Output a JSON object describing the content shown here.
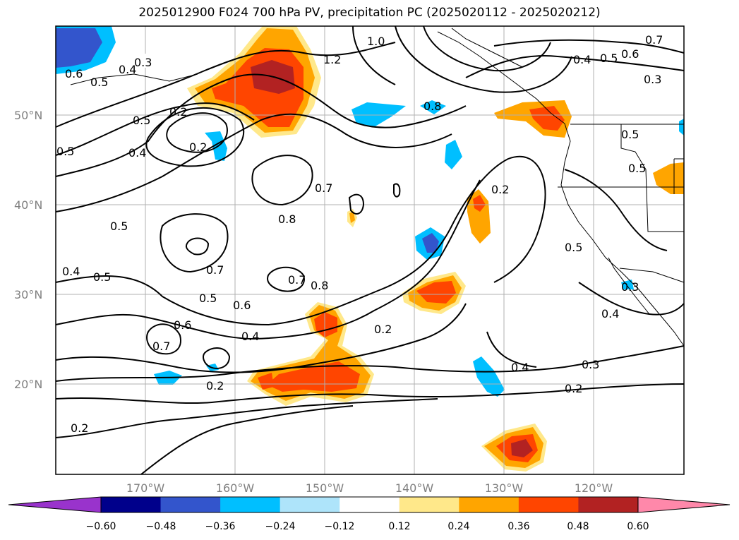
{
  "title": "2025012900 F024 700 hPa PV, precipitation PC (2025020112 - 2025020212)",
  "lat_ticks": [
    "50°N",
    "40°N",
    "30°N",
    "20°N"
  ],
  "lon_ticks": [
    "170°W",
    "160°W",
    "150°W",
    "140°W",
    "130°W",
    "120°W"
  ],
  "contour_labels": [
    "0.3",
    "0.4",
    "0.5",
    "0.6",
    "1.0",
    "1.2",
    "0.7",
    "0.6",
    "0.5",
    "0.4",
    "0.3",
    "0.5",
    "0.2",
    "0.4",
    "0.5",
    "0.8",
    "0.5",
    "0.2",
    "0.7",
    "0.8",
    "0.5",
    "0.4",
    "0.5",
    "0.7",
    "0.5",
    "0.6",
    "0.7",
    "0.6",
    "0.7",
    "0.4",
    "0.2",
    "0.2",
    "0.2",
    "0.4",
    "0.3",
    "0.2",
    "0.5",
    "0.3",
    "0.4",
    "0.5",
    "0.2",
    "0.8"
  ],
  "colorbar": {
    "ticks": [
      "−0.60",
      "−0.48",
      "−0.36",
      "−0.24",
      "−0.12",
      "0.12",
      "0.24",
      "0.36",
      "0.48",
      "0.60"
    ],
    "colors": [
      "#9933cc",
      "#00008b",
      "#3355cc",
      "#00bfff",
      "#aee4fa",
      "#ffffff",
      "#ffe88a",
      "#ffa500",
      "#ff4500",
      "#b22222",
      "#ff88aa"
    ]
  }
}
